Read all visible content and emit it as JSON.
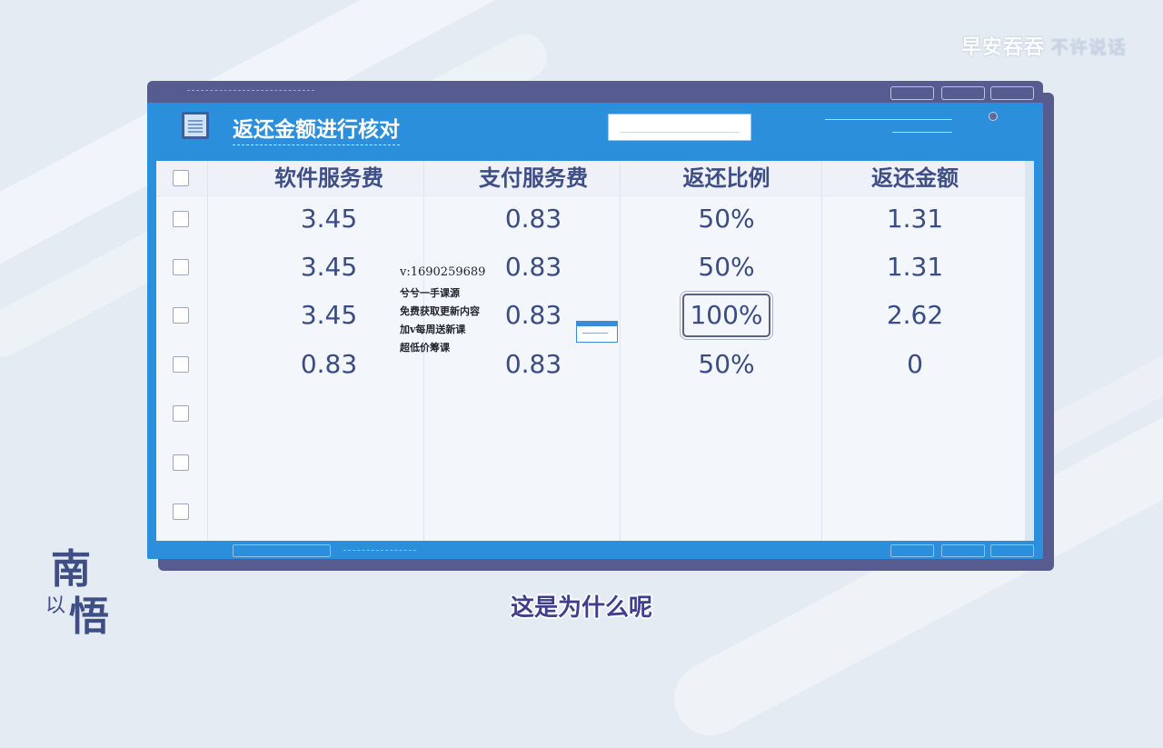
{
  "brand": {
    "text": "早安吞吞",
    "faint": "不许说话"
  },
  "logo": {
    "char1": "南",
    "char2": "以",
    "char3": "悟"
  },
  "app": {
    "title": "返还金额进行核对"
  },
  "table": {
    "columns": [
      "软件服务费",
      "支付服务费",
      "返还比例",
      "返还金额"
    ],
    "rows": [
      [
        "3.45",
        "0.83",
        "50%",
        "1.31"
      ],
      [
        "3.45",
        "0.83",
        "50%",
        "1.31"
      ],
      [
        "3.45",
        "0.83",
        "100%",
        "2.62"
      ],
      [
        "0.83",
        "0.83",
        "50%",
        "0"
      ]
    ],
    "highlighted_cell": {
      "row": 2,
      "column": 2
    }
  },
  "watermark": {
    "line0": "v:16902596​89",
    "line1": "兮兮一手课源",
    "line2": "免费获取更新内容",
    "line3": "加v每周送新课",
    "line4": "超低价筹课"
  },
  "subtitle": "这是为什么呢"
}
